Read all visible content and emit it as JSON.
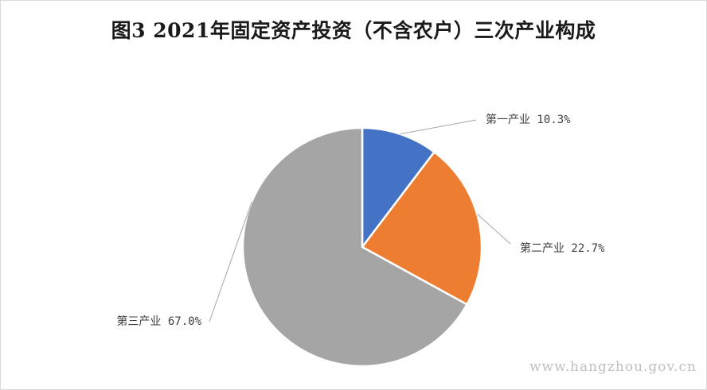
{
  "chart_data": {
    "type": "pie",
    "title": "图3 2021年固定资产投资（不含农户）三次产业构成",
    "categories": [
      "第一产业",
      "第二产业",
      "第三产业"
    ],
    "values": [
      10.3,
      22.7,
      67.0
    ],
    "unit": "%",
    "data_labels": [
      "第一产业 10.3%",
      "第二产业 22.7%",
      "第三产业 67.0%"
    ],
    "colors": [
      "#4472c4",
      "#ed7d31",
      "#a5a5a5"
    ],
    "start_angle": "12 o'clock",
    "direction": "clockwise",
    "legend": "none"
  },
  "watermark": "www.hangzhou.gov.cn"
}
